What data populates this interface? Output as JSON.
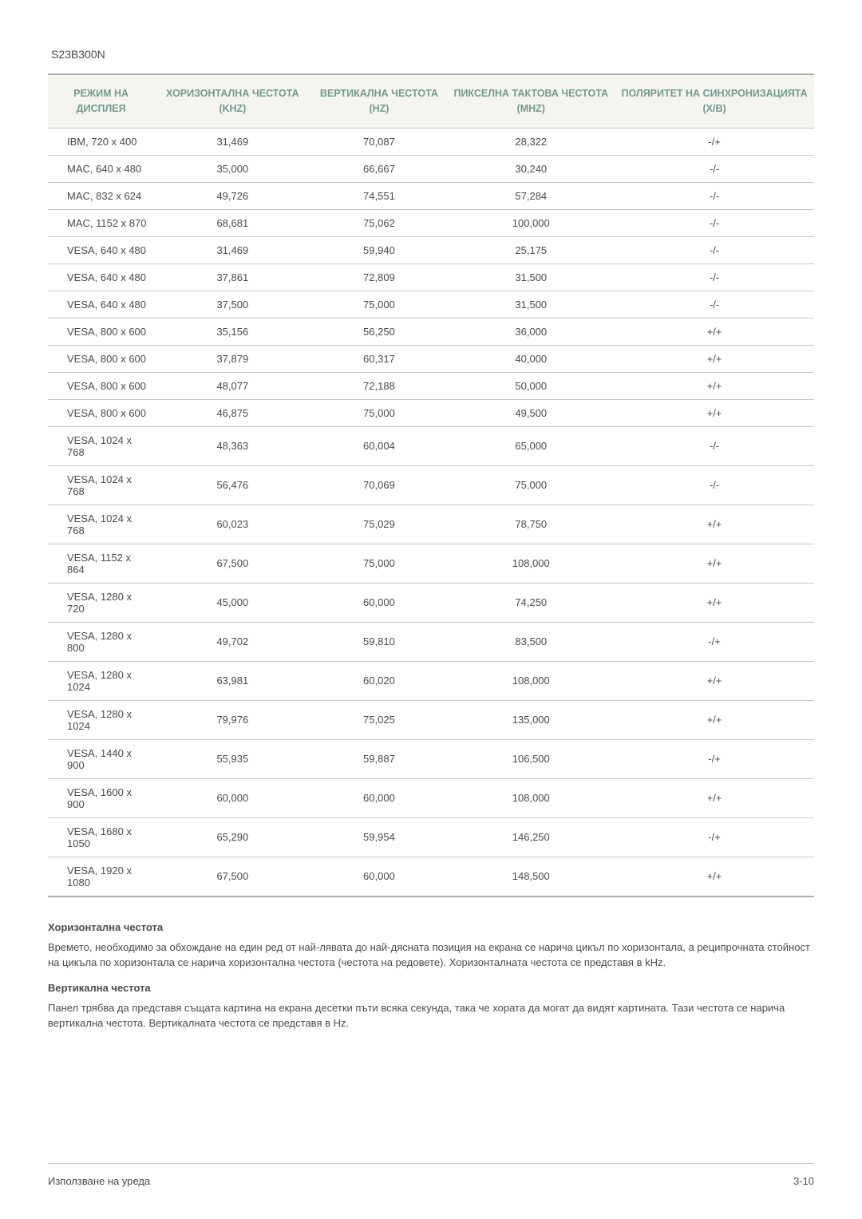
{
  "model": "S23B300N",
  "table": {
    "header_color": "#6f9b8a",
    "header_bg": "#f5f5f0",
    "border_color": "#b0b0b0",
    "row_border_color": "#c8c8c8",
    "text_color": "#4a4a4a",
    "columns": [
      "РЕЖИМ НА ДИСПЛЕЯ",
      "ХОРИЗОНТАЛНА ЧЕСТОТА (KHZ)",
      "ВЕРТИКАЛНА ЧЕСТОТА (HZ)",
      "ПИКСЕЛНА ТАКТОВА ЧЕСТОТА (MHZ)",
      "ПОЛЯРИТЕТ НА СИНХРОНИЗАЦИЯТА (Х/В)"
    ],
    "rows": [
      [
        "IBM, 720 x 400",
        "31,469",
        "70,087",
        "28,322",
        "-/+"
      ],
      [
        "MAC, 640 x 480",
        "35,000",
        "66,667",
        "30,240",
        "-/-"
      ],
      [
        "MAC, 832 x 624",
        "49,726",
        "74,551",
        "57,284",
        "-/-"
      ],
      [
        "MAC, 1152 x 870",
        "68,681",
        "75,062",
        "100,000",
        "-/-"
      ],
      [
        "VESA, 640 x 480",
        "31,469",
        "59,940",
        "25,175",
        "-/-"
      ],
      [
        "VESA, 640 x 480",
        "37,861",
        "72,809",
        "31,500",
        "-/-"
      ],
      [
        "VESA, 640 x 480",
        "37,500",
        "75,000",
        "31,500",
        "-/-"
      ],
      [
        "VESA, 800 x 600",
        "35,156",
        "56,250",
        "36,000",
        "+/+"
      ],
      [
        "VESA, 800 x 600",
        "37,879",
        "60,317",
        "40,000",
        "+/+"
      ],
      [
        "VESA, 800 x 600",
        "48,077",
        "72,188",
        "50,000",
        "+/+"
      ],
      [
        "VESA, 800 x 600",
        "46,875",
        "75,000",
        "49,500",
        "+/+"
      ],
      [
        "VESA, 1024 x 768",
        "48,363",
        "60,004",
        "65,000",
        "-/-"
      ],
      [
        "VESA, 1024 x 768",
        "56,476",
        "70,069",
        "75,000",
        "-/-"
      ],
      [
        "VESA, 1024 x 768",
        "60,023",
        "75,029",
        "78,750",
        "+/+"
      ],
      [
        "VESA, 1152 x 864",
        "67,500",
        "75,000",
        "108,000",
        "+/+"
      ],
      [
        "VESA, 1280 x 720",
        "45,000",
        "60,000",
        "74,250",
        "+/+"
      ],
      [
        "VESA, 1280 x 800",
        "49,702",
        "59,810",
        "83,500",
        "-/+"
      ],
      [
        "VESA, 1280 x 1024",
        "63,981",
        "60,020",
        "108,000",
        "+/+"
      ],
      [
        "VESA, 1280 x 1024",
        "79,976",
        "75,025",
        "135,000",
        "+/+"
      ],
      [
        "VESA, 1440 x 900",
        "55,935",
        "59,887",
        "106,500",
        "-/+"
      ],
      [
        "VESA, 1600 x 900",
        "60,000",
        "60,000",
        "108,000",
        "+/+"
      ],
      [
        "VESA, 1680 x 1050",
        "65,290",
        "59,954",
        "146,250",
        "-/+"
      ],
      [
        "VESA, 1920 x 1080",
        "67,500",
        "60,000",
        "148,500",
        "+/+"
      ]
    ]
  },
  "notes": {
    "horizontal_heading": "Хоризонтална честота",
    "horizontal_text": "Времето, необходимо за обхождане на един ред от най-лявата до най-дясната позиция на екрана се нарича цикъл по хоризонтала, а реципрочната стойност на цикъла по хоризонтала се нарича хоризонтална честота (честота на редовете). Хоризонталната честота се представя в kHz.",
    "vertical_heading": "Вертикална честота",
    "vertical_text": "Панел трябва да представя същата картина на екрана десетки пъти всяка секунда, така че хората да могат да видят картината. Тази честота се нарича вертикална честота. Вертикалната честота се представя в Hz."
  },
  "footer": {
    "left": "Използване на уреда",
    "right": "3-10"
  }
}
